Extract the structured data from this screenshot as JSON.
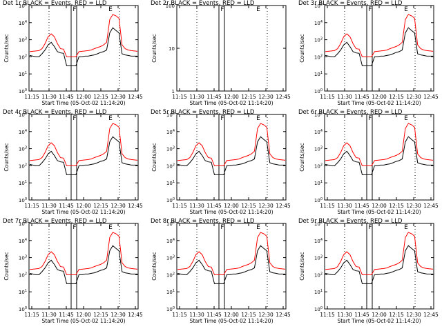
{
  "chart_data": [
    {
      "type": "line",
      "title": "Det 1r BLACK = Events, RED = LLD",
      "xlabel": "Start Time (05-Oct-02 11:14:20)",
      "ylabel": "Counts/sec",
      "yscale": "log",
      "ylim": [
        1,
        100000
      ],
      "ytick_labels": [
        "10^0",
        "10^1",
        "10^2",
        "10^3",
        "10^4",
        "10^5"
      ],
      "xtick_labels": [
        "11:15",
        "11:30",
        "11:45",
        "12:00",
        "12:15",
        "12:30",
        "12:45"
      ],
      "markers": [
        "F",
        "E"
      ],
      "series": [
        {
          "name": "Events",
          "color": "#000000",
          "values": [
            120,
            110,
            100,
            100,
            150,
            250,
            500,
            700,
            400,
            200,
            170,
            160,
            30,
            30,
            30,
            30,
            100,
            100,
            110,
            110,
            120,
            130,
            150,
            180,
            200,
            250,
            2500,
            5000,
            3500,
            2500,
            150,
            130,
            120,
            110,
            110,
            110
          ]
        },
        {
          "name": "LLD",
          "color": "#ff0000",
          "values": [
            200,
            210,
            220,
            230,
            300,
            600,
            1500,
            2200,
            1500,
            600,
            300,
            280,
            100,
            100,
            100,
            100,
            200,
            210,
            220,
            230,
            250,
            300,
            350,
            400,
            500,
            700,
            15000,
            30000,
            25000,
            18000,
            500,
            300,
            250,
            230,
            220,
            210
          ]
        }
      ]
    },
    {
      "type": "line",
      "title": "Det 2r BLACK = Events, RED = LLD",
      "xlabel": "Start Time (05-Oct-02 11:14:20)",
      "ylabel": "Counts/sec",
      "yscale": "log",
      "ylim": [
        1,
        100
      ],
      "ytick_labels": [
        "1",
        "10",
        "100"
      ],
      "xtick_labels": [
        "11:15",
        "11:30",
        "11:45",
        "12:00",
        "12:15",
        "12:30",
        "12:45"
      ],
      "markers": [
        "F",
        "E"
      ],
      "series": []
    },
    {
      "type": "line",
      "title": "Det 3r BLACK = Events, RED = LLD",
      "xlabel": "Start Time (05-Oct-02 11:14:20)",
      "ylabel": "Counts/sec",
      "yscale": "log",
      "ylim": [
        1,
        100000
      ],
      "ytick_labels": [
        "10^0",
        "10^1",
        "10^2",
        "10^3",
        "10^4",
        "10^5"
      ],
      "xtick_labels": [
        "11:15",
        "11:30",
        "11:45",
        "12:00",
        "12:15",
        "12:30",
        "12:45"
      ],
      "markers": [
        "F",
        "E"
      ],
      "series": [
        {
          "name": "Events",
          "color": "#000000",
          "values": [
            120,
            110,
            100,
            100,
            150,
            250,
            500,
            700,
            400,
            200,
            170,
            160,
            30,
            30,
            30,
            30,
            100,
            100,
            110,
            110,
            120,
            130,
            150,
            180,
            200,
            250,
            2500,
            5000,
            3500,
            2500,
            150,
            130,
            120,
            110,
            110,
            110
          ]
        },
        {
          "name": "LLD",
          "color": "#ff0000",
          "values": [
            200,
            210,
            220,
            230,
            300,
            600,
            1500,
            2200,
            1500,
            600,
            300,
            280,
            100,
            100,
            100,
            100,
            200,
            210,
            220,
            230,
            250,
            300,
            350,
            400,
            500,
            700,
            15000,
            30000,
            25000,
            18000,
            500,
            300,
            250,
            230,
            220,
            210
          ]
        }
      ]
    },
    {
      "type": "line",
      "title": "Det 4r BLACK = Events, RED = LLD",
      "xlabel": "Start Time (05-Oct-02 11:14:20)",
      "ylabel": "Counts/sec",
      "yscale": "log",
      "ylim": [
        1,
        100000
      ],
      "ytick_labels": [
        "10^0",
        "10^1",
        "10^2",
        "10^3",
        "10^4",
        "10^5"
      ],
      "xtick_labels": [
        "11:15",
        "11:30",
        "11:45",
        "12:00",
        "12:15",
        "12:30",
        "12:45"
      ],
      "markers": [
        "F",
        "E"
      ],
      "series": [
        {
          "name": "Events",
          "color": "#000000",
          "values": [
            120,
            110,
            100,
            100,
            150,
            250,
            500,
            700,
            400,
            200,
            170,
            160,
            30,
            30,
            30,
            30,
            100,
            100,
            110,
            110,
            120,
            130,
            150,
            180,
            200,
            250,
            2500,
            5000,
            3500,
            2500,
            150,
            130,
            120,
            110,
            110,
            110
          ]
        },
        {
          "name": "LLD",
          "color": "#ff0000",
          "values": [
            200,
            210,
            220,
            230,
            300,
            600,
            1500,
            2200,
            1500,
            600,
            300,
            280,
            100,
            100,
            100,
            100,
            200,
            210,
            220,
            230,
            250,
            300,
            350,
            400,
            500,
            700,
            15000,
            30000,
            25000,
            18000,
            500,
            300,
            250,
            230,
            220,
            210
          ]
        }
      ]
    },
    {
      "type": "line",
      "title": "Det 5r BLACK = Events, RED = LLD",
      "xlabel": "Start Time (05-Oct-02 11:14:20)",
      "ylabel": "Counts/sec",
      "yscale": "log",
      "ylim": [
        1,
        100000
      ],
      "ytick_labels": [
        "10^0",
        "10^1",
        "10^2",
        "10^3",
        "10^4",
        "10^5"
      ],
      "xtick_labels": [
        "11:15",
        "11:30",
        "11:45",
        "12:00",
        "12:15",
        "12:30",
        "12:45"
      ],
      "markers": [
        "F",
        "E"
      ],
      "series": [
        {
          "name": "Events",
          "color": "#000000",
          "values": [
            120,
            110,
            100,
            100,
            150,
            250,
            500,
            700,
            400,
            200,
            170,
            160,
            30,
            30,
            30,
            30,
            100,
            100,
            110,
            110,
            120,
            130,
            150,
            180,
            200,
            250,
            2500,
            5000,
            3500,
            2500,
            150,
            130,
            120,
            110,
            110,
            110
          ]
        },
        {
          "name": "LLD",
          "color": "#ff0000",
          "values": [
            200,
            210,
            220,
            230,
            300,
            600,
            1500,
            2200,
            1500,
            600,
            300,
            280,
            100,
            100,
            100,
            100,
            200,
            210,
            220,
            230,
            250,
            300,
            350,
            400,
            500,
            700,
            15000,
            30000,
            25000,
            18000,
            500,
            300,
            250,
            230,
            220,
            210
          ]
        }
      ]
    },
    {
      "type": "line",
      "title": "Det 6r BLACK = Events, RED = LLD",
      "xlabel": "Start Time (05-Oct-02 11:14:20)",
      "ylabel": "Counts/sec",
      "yscale": "log",
      "ylim": [
        1,
        100000
      ],
      "ytick_labels": [
        "10^0",
        "10^1",
        "10^2",
        "10^3",
        "10^4",
        "10^5"
      ],
      "xtick_labels": [
        "11:15",
        "11:30",
        "11:45",
        "12:00",
        "12:15",
        "12:30",
        "12:45"
      ],
      "markers": [
        "F",
        "E"
      ],
      "series": [
        {
          "name": "Events",
          "color": "#000000",
          "values": [
            120,
            110,
            100,
            100,
            150,
            250,
            500,
            700,
            400,
            200,
            170,
            160,
            30,
            30,
            30,
            30,
            100,
            100,
            110,
            110,
            120,
            130,
            150,
            180,
            200,
            250,
            2500,
            5000,
            3500,
            2500,
            150,
            130,
            120,
            110,
            110,
            110
          ]
        },
        {
          "name": "LLD",
          "color": "#ff0000",
          "values": [
            200,
            210,
            220,
            230,
            300,
            600,
            1500,
            2200,
            1500,
            600,
            300,
            280,
            100,
            100,
            100,
            100,
            200,
            210,
            220,
            230,
            250,
            300,
            350,
            400,
            500,
            700,
            15000,
            30000,
            25000,
            18000,
            500,
            300,
            250,
            230,
            220,
            210
          ]
        }
      ]
    },
    {
      "type": "line",
      "title": "Det 7r BLACK = Events, RED = LLD",
      "xlabel": "Start Time (05-Oct-02 11:14:20)",
      "ylabel": "Counts/sec",
      "yscale": "log",
      "ylim": [
        1,
        100000
      ],
      "ytick_labels": [
        "10^0",
        "10^1",
        "10^2",
        "10^3",
        "10^4",
        "10^5"
      ],
      "xtick_labels": [
        "11:15",
        "11:30",
        "11:45",
        "12:00",
        "12:15",
        "12:30",
        "12:45"
      ],
      "markers": [
        "F",
        "E"
      ],
      "series": [
        {
          "name": "Events",
          "color": "#000000",
          "values": [
            120,
            110,
            100,
            100,
            150,
            250,
            500,
            700,
            400,
            200,
            170,
            160,
            30,
            30,
            30,
            30,
            100,
            100,
            110,
            110,
            120,
            130,
            150,
            180,
            200,
            250,
            2500,
            5000,
            3500,
            2500,
            150,
            130,
            120,
            110,
            110,
            110
          ]
        },
        {
          "name": "LLD",
          "color": "#ff0000",
          "values": [
            200,
            210,
            220,
            230,
            300,
            600,
            1500,
            2200,
            1500,
            600,
            300,
            280,
            100,
            100,
            100,
            100,
            200,
            210,
            220,
            230,
            250,
            300,
            350,
            400,
            500,
            700,
            15000,
            30000,
            25000,
            18000,
            500,
            300,
            250,
            230,
            220,
            210
          ]
        }
      ]
    },
    {
      "type": "line",
      "title": "Det 8r BLACK = Events, RED = LLD",
      "xlabel": "Start Time (05-Oct-02 11:14:20)",
      "ylabel": "Counts/sec",
      "yscale": "log",
      "ylim": [
        1,
        100000
      ],
      "ytick_labels": [
        "10^0",
        "10^1",
        "10^2",
        "10^3",
        "10^4",
        "10^5"
      ],
      "xtick_labels": [
        "11:15",
        "11:30",
        "11:45",
        "12:00",
        "12:15",
        "12:30",
        "12:45"
      ],
      "markers": [
        "F",
        "E"
      ],
      "series": [
        {
          "name": "Events",
          "color": "#000000",
          "values": [
            120,
            110,
            100,
            100,
            150,
            250,
            500,
            700,
            400,
            200,
            170,
            160,
            30,
            30,
            30,
            30,
            100,
            100,
            110,
            110,
            120,
            130,
            150,
            180,
            200,
            250,
            2500,
            5000,
            3500,
            2500,
            150,
            130,
            120,
            110,
            110,
            110
          ]
        },
        {
          "name": "LLD",
          "color": "#ff0000",
          "values": [
            200,
            210,
            220,
            230,
            300,
            600,
            1500,
            2200,
            1500,
            600,
            300,
            280,
            100,
            100,
            100,
            100,
            200,
            210,
            220,
            230,
            250,
            300,
            350,
            400,
            500,
            700,
            15000,
            30000,
            25000,
            18000,
            500,
            300,
            250,
            230,
            220,
            210
          ]
        }
      ]
    },
    {
      "type": "line",
      "title": "Det 9r BLACK = Events, RED = LLD",
      "xlabel": "Start Time (05-Oct-02 11:14:20)",
      "ylabel": "Counts/sec",
      "yscale": "log",
      "ylim": [
        1,
        100000
      ],
      "ytick_labels": [
        "10^0",
        "10^1",
        "10^2",
        "10^3",
        "10^4",
        "10^5"
      ],
      "xtick_labels": [
        "11:15",
        "11:30",
        "11:45",
        "12:00",
        "12:15",
        "12:30",
        "12:45"
      ],
      "markers": [
        "F",
        "E"
      ],
      "series": [
        {
          "name": "Events",
          "color": "#000000",
          "values": [
            120,
            110,
            100,
            100,
            150,
            250,
            500,
            700,
            400,
            200,
            170,
            160,
            30,
            30,
            30,
            30,
            100,
            100,
            110,
            110,
            120,
            130,
            150,
            180,
            200,
            250,
            2500,
            5000,
            3500,
            2500,
            150,
            130,
            120,
            110,
            110,
            110
          ]
        },
        {
          "name": "LLD",
          "color": "#ff0000",
          "values": [
            200,
            210,
            220,
            230,
            300,
            600,
            1500,
            2200,
            1500,
            600,
            300,
            280,
            100,
            100,
            100,
            100,
            200,
            210,
            220,
            230,
            250,
            300,
            350,
            400,
            500,
            700,
            15000,
            30000,
            25000,
            18000,
            500,
            300,
            250,
            230,
            220,
            210
          ]
        }
      ]
    }
  ]
}
